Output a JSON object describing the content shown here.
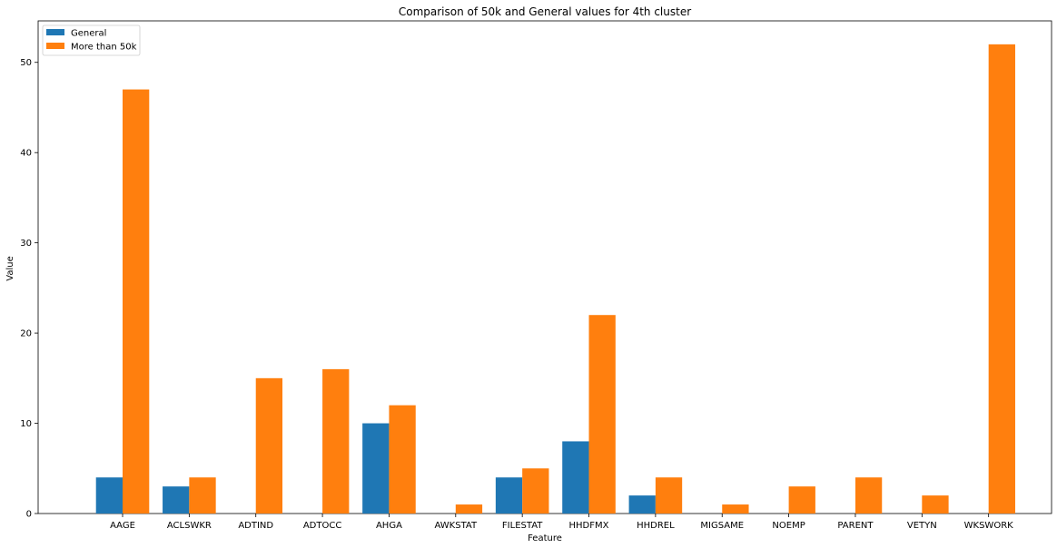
{
  "chart_data": {
    "type": "bar",
    "title": "Comparison of 50k and General values for 4th cluster",
    "xlabel": "Feature",
    "ylabel": "Value",
    "categories": [
      "AAGE",
      "ACLSWKR",
      "ADTIND",
      "ADTOCC",
      "AHGA",
      "AWKSTAT",
      "FILESTAT",
      "HHDFMX",
      "HHDREL",
      "MIGSAME",
      "NOEMP",
      "PARENT",
      "VETYN",
      "WKSWORK"
    ],
    "series": [
      {
        "name": "General",
        "color": "#1f77b4",
        "values": [
          4,
          3,
          0,
          0,
          10,
          0,
          4,
          8,
          2,
          0,
          0,
          0,
          0,
          0
        ]
      },
      {
        "name": "More than 50k",
        "color": "#ff7f0e",
        "values": [
          47,
          4,
          15,
          16,
          12,
          1,
          5,
          22,
          4,
          1,
          3,
          4,
          2,
          52
        ]
      }
    ],
    "ylim": [
      0,
      54.6
    ],
    "yticks": [
      0,
      10,
      20,
      30,
      40,
      50
    ],
    "grid": false,
    "legend_position": "top-left"
  }
}
